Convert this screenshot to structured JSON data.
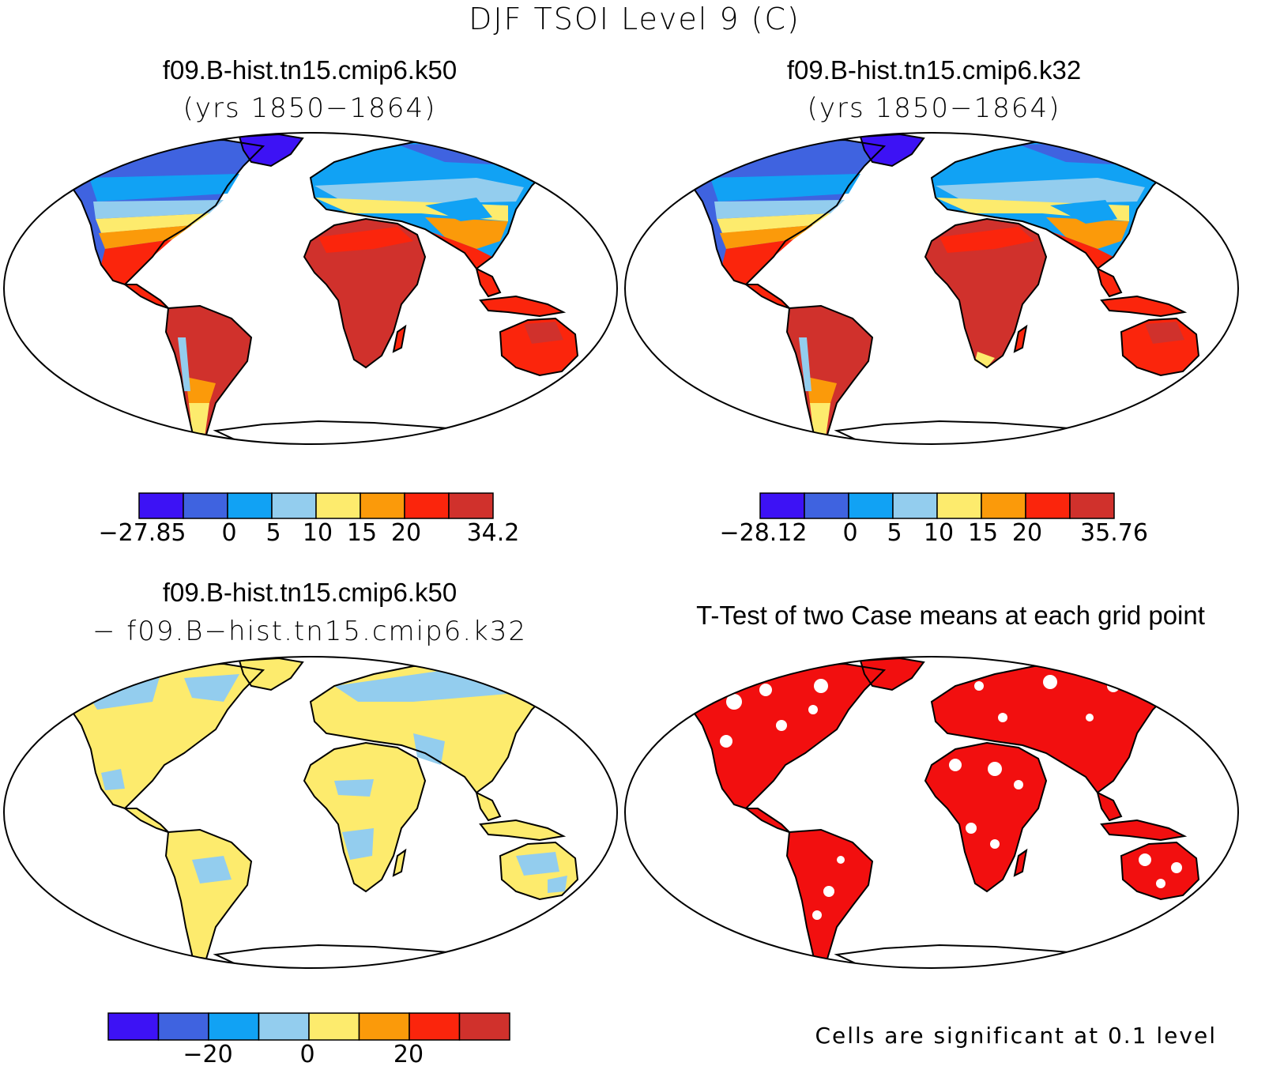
{
  "figure": {
    "title": "DJF TSOI Level 9 (C)"
  },
  "panels": [
    {
      "title": "f09.B-hist.tn15.cmip6.k50",
      "subtitle": "(yrs 1850−1864)",
      "colorbar": {
        "labels": [
          "−27.85",
          "0",
          "5",
          "10",
          "15",
          "20",
          "34.2"
        ]
      }
    },
    {
      "title": "f09.B-hist.tn15.cmip6.k32",
      "subtitle": "(yrs 1850−1864)",
      "colorbar": {
        "labels": [
          "−28.12",
          "0",
          "5",
          "10",
          "15",
          "20",
          "35.76"
        ]
      }
    },
    {
      "title": "f09.B-hist.tn15.cmip6.k50",
      "subtitle": "− f09.B−hist.tn15.cmip6.k32",
      "colorbar": {
        "labels": [
          "−20",
          "0",
          "20"
        ]
      }
    },
    {
      "title": "T-Test of two Case means at each grid point",
      "note": "Cells are significant at 0.1 level"
    }
  ],
  "palette": {
    "colorbar": [
      "#3d12f5",
      "#3f63e0",
      "#11a2f4",
      "#93cdee",
      "#fdeb6d",
      "#fb9a0a",
      "#fb250c",
      "#d0312c"
    ],
    "significant": "#f20f0f",
    "coastline": "#000000"
  }
}
